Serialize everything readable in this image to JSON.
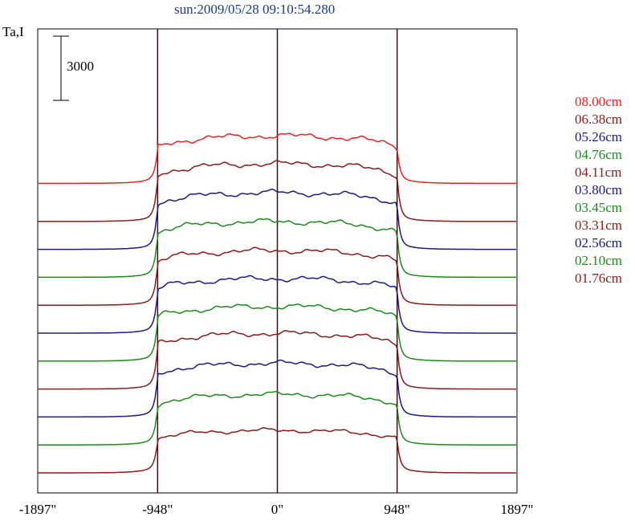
{
  "chart_data": {
    "type": "line",
    "title": "sun:2009/05/28 09:10:54.280",
    "ylabel": "Ta,I",
    "scale_bar": "3000",
    "xlim": [
      -1897,
      1897
    ],
    "x_ticks": [
      "-1897\"",
      "-948\"",
      "0\"",
      "948\"",
      "1897\""
    ],
    "vertical_lines_at": [
      -948,
      0,
      948
    ],
    "series": [
      {
        "name": "08.00cm",
        "color": "#ee2222",
        "baseline": 1.0,
        "plateau": 5.7
      },
      {
        "name": "06.38cm",
        "color": "#8b1a1a",
        "baseline": 0.0,
        "plateau": 5.7
      },
      {
        "name": "05.26cm",
        "color": "#1a1a8b",
        "baseline": 0.0,
        "plateau": 5.6
      },
      {
        "name": "04.76cm",
        "color": "#1a8b1a",
        "baseline": 0.0,
        "plateau": 5.5
      },
      {
        "name": "04.11cm",
        "color": "#8b1a1a",
        "baseline": 0.0,
        "plateau": 5.4
      },
      {
        "name": "03.80cm",
        "color": "#1a1a8b",
        "baseline": 0.0,
        "plateau": 5.4
      },
      {
        "name": "03.45cm",
        "color": "#1a8b1a",
        "baseline": 0.0,
        "plateau": 5.4
      },
      {
        "name": "03.31cm",
        "color": "#8b1a1a",
        "baseline": 0.0,
        "plateau": 5.5
      },
      {
        "name": "02.56cm",
        "color": "#1a1a8b",
        "baseline": 0.0,
        "plateau": 5.3
      },
      {
        "name": "02.10cm",
        "color": "#1a8b1a",
        "baseline": 0.0,
        "plateau": 5.0
      },
      {
        "name": "01.76cm",
        "color": "#8b1a1a",
        "baseline": 0.0,
        "plateau": 4.2
      }
    ]
  }
}
